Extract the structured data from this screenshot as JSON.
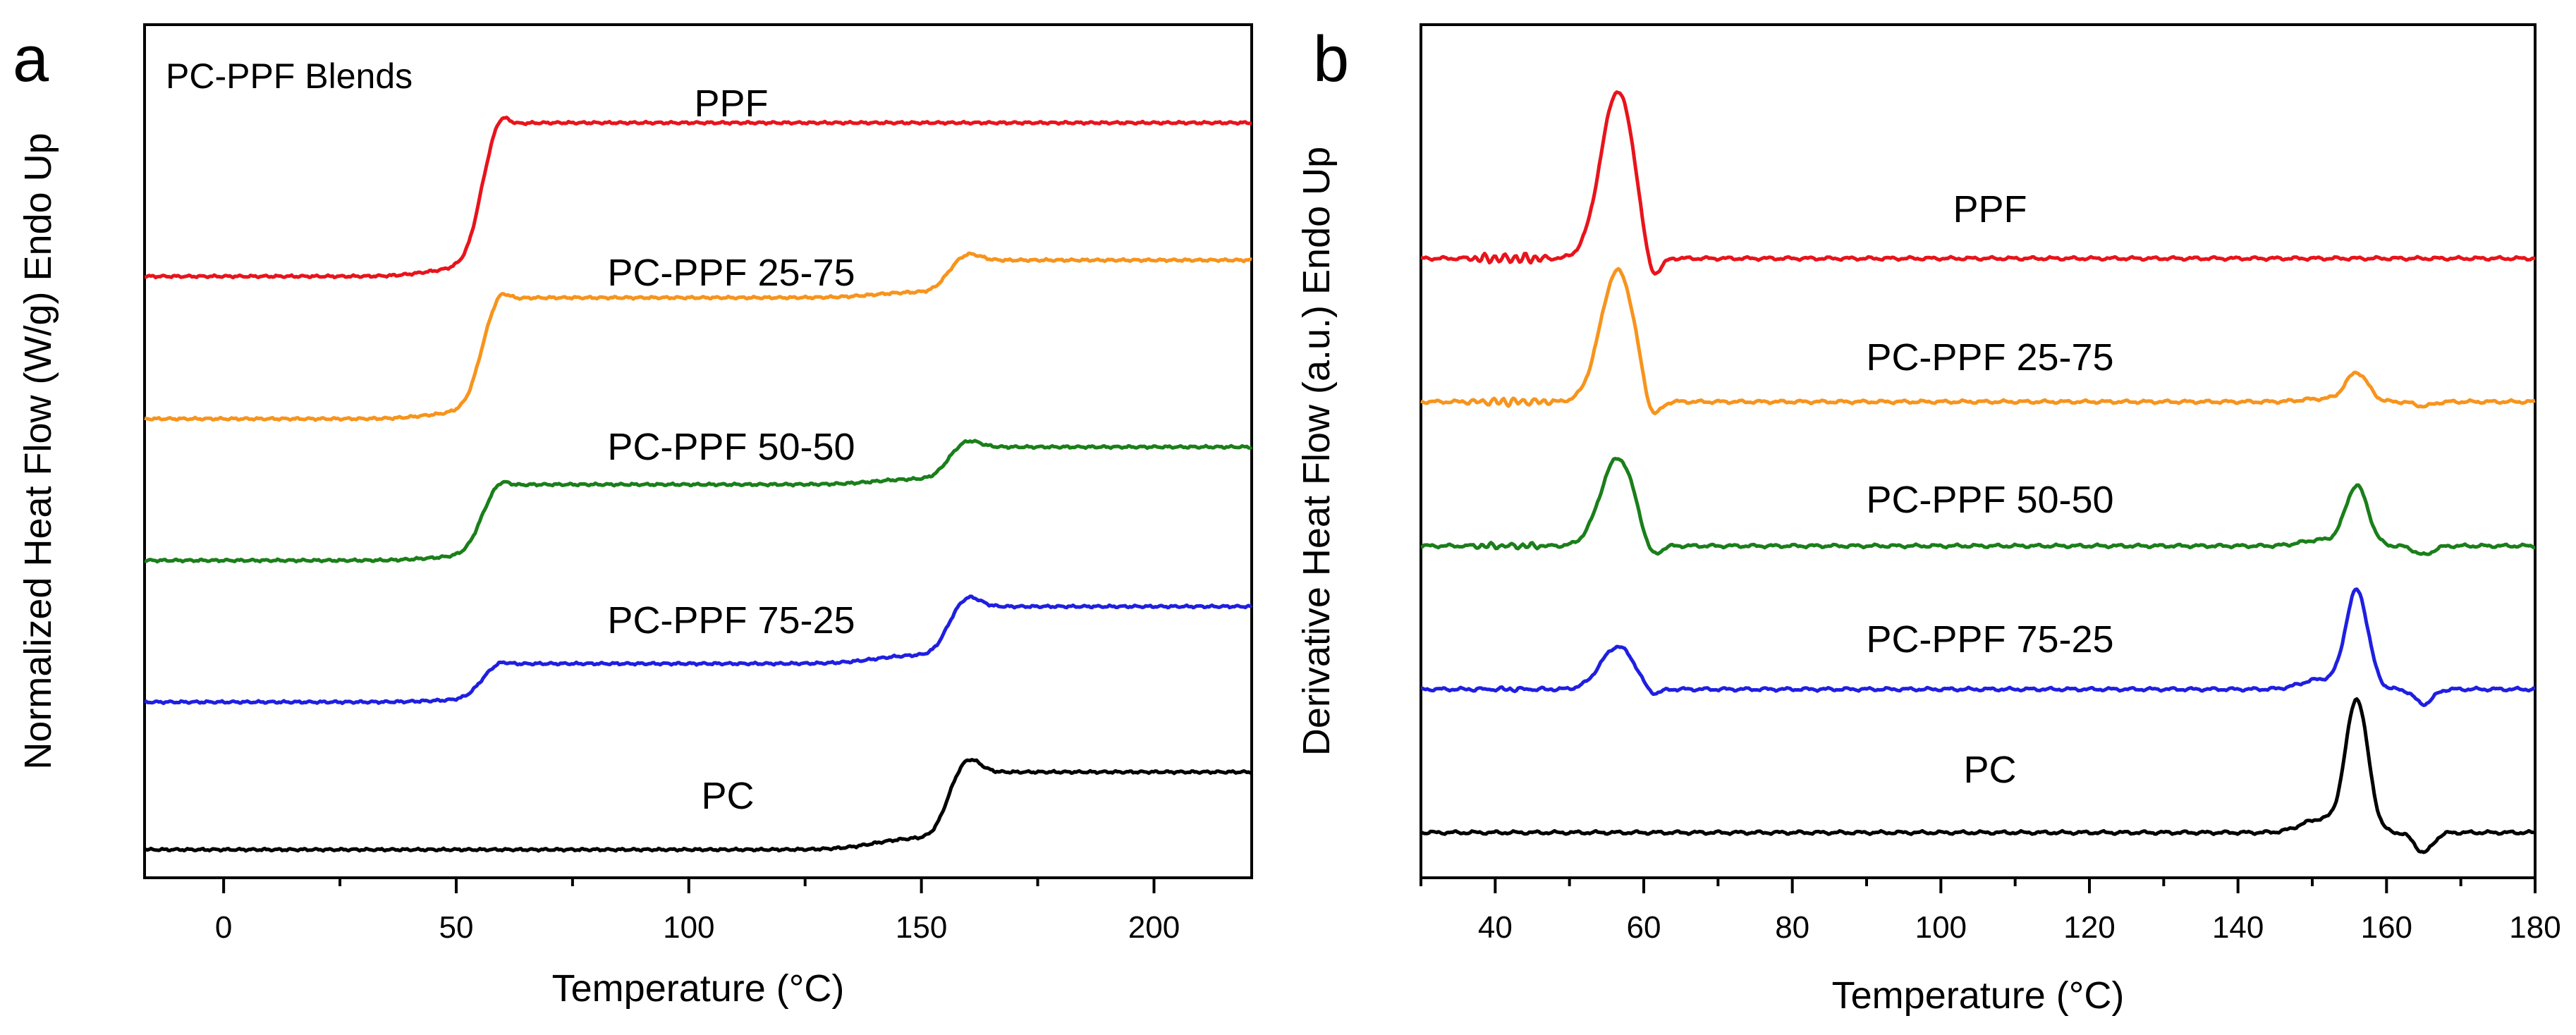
{
  "chart_data": [
    {
      "panel": "a",
      "type": "line",
      "annotation": "PC-PPF Blends",
      "xlabel": "Temperature (°C)",
      "ylabel": "Normalized Heat Flow (W/g) Endo Up",
      "xlim": [
        -17,
        221
      ],
      "ylim": [
        0,
        1
      ],
      "xticks": [
        0,
        50,
        100,
        150,
        200
      ],
      "show_y_ticks": false,
      "series": [
        {
          "name": "PPF",
          "label": "PPF",
          "color": "#e8141b",
          "baseline": 0.705,
          "jumps": [
            0.18,
            0
          ]
        },
        {
          "name": "PC-PPF 25-75",
          "label": "PC-PPF 25-75",
          "color": "#f7941d",
          "baseline": 0.538,
          "jumps": [
            0.142,
            0.044
          ]
        },
        {
          "name": "PC-PPF 50-50",
          "label": "PC-PPF 50-50",
          "color": "#1a7f1a",
          "baseline": 0.372,
          "jumps": [
            0.089,
            0.044
          ]
        },
        {
          "name": "PC-PPF 75-25",
          "label": "PC-PPF 75-25",
          "color": "#1f1fe0",
          "baseline": 0.206,
          "jumps": [
            0.045,
            0.067
          ]
        },
        {
          "name": "PC",
          "label": "PC",
          "color": "#000000",
          "baseline": 0.033,
          "jumps": [
            0,
            0.091
          ]
        }
      ],
      "transitions": {
        "tg1_center_C": 55,
        "tg2_center_C": 155
      }
    },
    {
      "panel": "b",
      "type": "line",
      "xlabel": "Temperature (°C)",
      "ylabel": "Derivative Heat Flow (a.u.) Endo Up",
      "xlim": [
        30,
        180
      ],
      "ylim": [
        0,
        1
      ],
      "xticks": [
        40,
        60,
        80,
        100,
        120,
        140,
        160,
        180
      ],
      "show_y_ticks": false,
      "series": [
        {
          "name": "PPF",
          "label": "PPF",
          "color": "#e8141b",
          "baseline": 0.726,
          "peak1": 0.196,
          "peak2": 0
        },
        {
          "name": "PC-PPF 25-75",
          "label": "PC-PPF 25-75",
          "color": "#f7941d",
          "baseline": 0.558,
          "peak1": 0.154,
          "peak2": 0.034
        },
        {
          "name": "PC-PPF 50-50",
          "label": "PC-PPF 50-50",
          "color": "#1a7f1a",
          "baseline": 0.389,
          "peak1": 0.103,
          "peak2": 0.07
        },
        {
          "name": "PC-PPF 75-25",
          "label": "PC-PPF 75-25",
          "color": "#1f1fe0",
          "baseline": 0.221,
          "peak1": 0.05,
          "peak2": 0.115
        },
        {
          "name": "PC",
          "label": "PC",
          "color": "#000000",
          "baseline": 0.053,
          "peak1": 0,
          "peak2": 0.155
        }
      ],
      "peaks": {
        "peak1_C": 56.5,
        "peak2_C": 156
      }
    }
  ]
}
